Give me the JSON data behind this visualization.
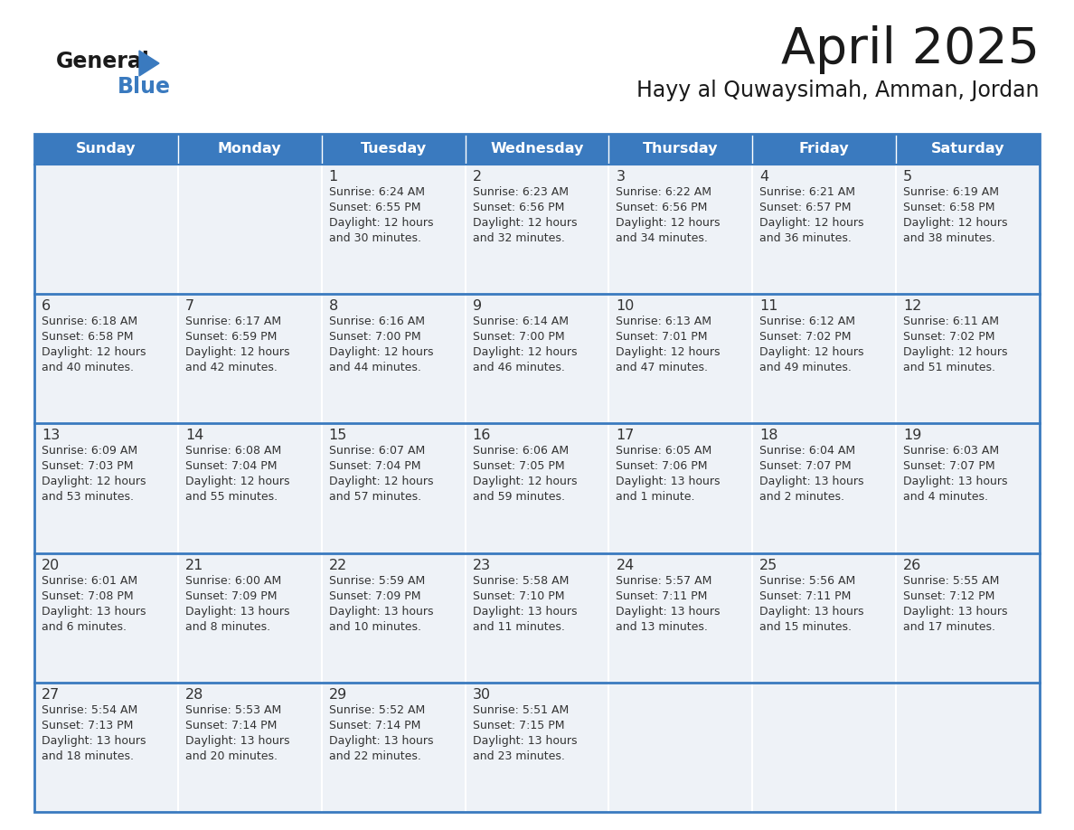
{
  "title": "April 2025",
  "subtitle": "Hayy al Quwaysimah, Amman, Jordan",
  "days_of_week": [
    "Sunday",
    "Monday",
    "Tuesday",
    "Wednesday",
    "Thursday",
    "Friday",
    "Saturday"
  ],
  "header_bg": "#3a7abf",
  "header_text": "#ffffff",
  "cell_bg": "#eef2f7",
  "cell_bg_empty": "#eef2f7",
  "border_color": "#3a7abf",
  "row_sep_color": "#3a7abf",
  "title_color": "#1a1a1a",
  "text_color": "#333333",
  "logo_black": "#1a1a1a",
  "logo_blue": "#3a7abf",
  "calendar_data": [
    [
      {
        "day": "",
        "info": ""
      },
      {
        "day": "",
        "info": ""
      },
      {
        "day": "1",
        "info": "Sunrise: 6:24 AM\nSunset: 6:55 PM\nDaylight: 12 hours\nand 30 minutes."
      },
      {
        "day": "2",
        "info": "Sunrise: 6:23 AM\nSunset: 6:56 PM\nDaylight: 12 hours\nand 32 minutes."
      },
      {
        "day": "3",
        "info": "Sunrise: 6:22 AM\nSunset: 6:56 PM\nDaylight: 12 hours\nand 34 minutes."
      },
      {
        "day": "4",
        "info": "Sunrise: 6:21 AM\nSunset: 6:57 PM\nDaylight: 12 hours\nand 36 minutes."
      },
      {
        "day": "5",
        "info": "Sunrise: 6:19 AM\nSunset: 6:58 PM\nDaylight: 12 hours\nand 38 minutes."
      }
    ],
    [
      {
        "day": "6",
        "info": "Sunrise: 6:18 AM\nSunset: 6:58 PM\nDaylight: 12 hours\nand 40 minutes."
      },
      {
        "day": "7",
        "info": "Sunrise: 6:17 AM\nSunset: 6:59 PM\nDaylight: 12 hours\nand 42 minutes."
      },
      {
        "day": "8",
        "info": "Sunrise: 6:16 AM\nSunset: 7:00 PM\nDaylight: 12 hours\nand 44 minutes."
      },
      {
        "day": "9",
        "info": "Sunrise: 6:14 AM\nSunset: 7:00 PM\nDaylight: 12 hours\nand 46 minutes."
      },
      {
        "day": "10",
        "info": "Sunrise: 6:13 AM\nSunset: 7:01 PM\nDaylight: 12 hours\nand 47 minutes."
      },
      {
        "day": "11",
        "info": "Sunrise: 6:12 AM\nSunset: 7:02 PM\nDaylight: 12 hours\nand 49 minutes."
      },
      {
        "day": "12",
        "info": "Sunrise: 6:11 AM\nSunset: 7:02 PM\nDaylight: 12 hours\nand 51 minutes."
      }
    ],
    [
      {
        "day": "13",
        "info": "Sunrise: 6:09 AM\nSunset: 7:03 PM\nDaylight: 12 hours\nand 53 minutes."
      },
      {
        "day": "14",
        "info": "Sunrise: 6:08 AM\nSunset: 7:04 PM\nDaylight: 12 hours\nand 55 minutes."
      },
      {
        "day": "15",
        "info": "Sunrise: 6:07 AM\nSunset: 7:04 PM\nDaylight: 12 hours\nand 57 minutes."
      },
      {
        "day": "16",
        "info": "Sunrise: 6:06 AM\nSunset: 7:05 PM\nDaylight: 12 hours\nand 59 minutes."
      },
      {
        "day": "17",
        "info": "Sunrise: 6:05 AM\nSunset: 7:06 PM\nDaylight: 13 hours\nand 1 minute."
      },
      {
        "day": "18",
        "info": "Sunrise: 6:04 AM\nSunset: 7:07 PM\nDaylight: 13 hours\nand 2 minutes."
      },
      {
        "day": "19",
        "info": "Sunrise: 6:03 AM\nSunset: 7:07 PM\nDaylight: 13 hours\nand 4 minutes."
      }
    ],
    [
      {
        "day": "20",
        "info": "Sunrise: 6:01 AM\nSunset: 7:08 PM\nDaylight: 13 hours\nand 6 minutes."
      },
      {
        "day": "21",
        "info": "Sunrise: 6:00 AM\nSunset: 7:09 PM\nDaylight: 13 hours\nand 8 minutes."
      },
      {
        "day": "22",
        "info": "Sunrise: 5:59 AM\nSunset: 7:09 PM\nDaylight: 13 hours\nand 10 minutes."
      },
      {
        "day": "23",
        "info": "Sunrise: 5:58 AM\nSunset: 7:10 PM\nDaylight: 13 hours\nand 11 minutes."
      },
      {
        "day": "24",
        "info": "Sunrise: 5:57 AM\nSunset: 7:11 PM\nDaylight: 13 hours\nand 13 minutes."
      },
      {
        "day": "25",
        "info": "Sunrise: 5:56 AM\nSunset: 7:11 PM\nDaylight: 13 hours\nand 15 minutes."
      },
      {
        "day": "26",
        "info": "Sunrise: 5:55 AM\nSunset: 7:12 PM\nDaylight: 13 hours\nand 17 minutes."
      }
    ],
    [
      {
        "day": "27",
        "info": "Sunrise: 5:54 AM\nSunset: 7:13 PM\nDaylight: 13 hours\nand 18 minutes."
      },
      {
        "day": "28",
        "info": "Sunrise: 5:53 AM\nSunset: 7:14 PM\nDaylight: 13 hours\nand 20 minutes."
      },
      {
        "day": "29",
        "info": "Sunrise: 5:52 AM\nSunset: 7:14 PM\nDaylight: 13 hours\nand 22 minutes."
      },
      {
        "day": "30",
        "info": "Sunrise: 5:51 AM\nSunset: 7:15 PM\nDaylight: 13 hours\nand 23 minutes."
      },
      {
        "day": "",
        "info": ""
      },
      {
        "day": "",
        "info": ""
      },
      {
        "day": "",
        "info": ""
      }
    ]
  ]
}
